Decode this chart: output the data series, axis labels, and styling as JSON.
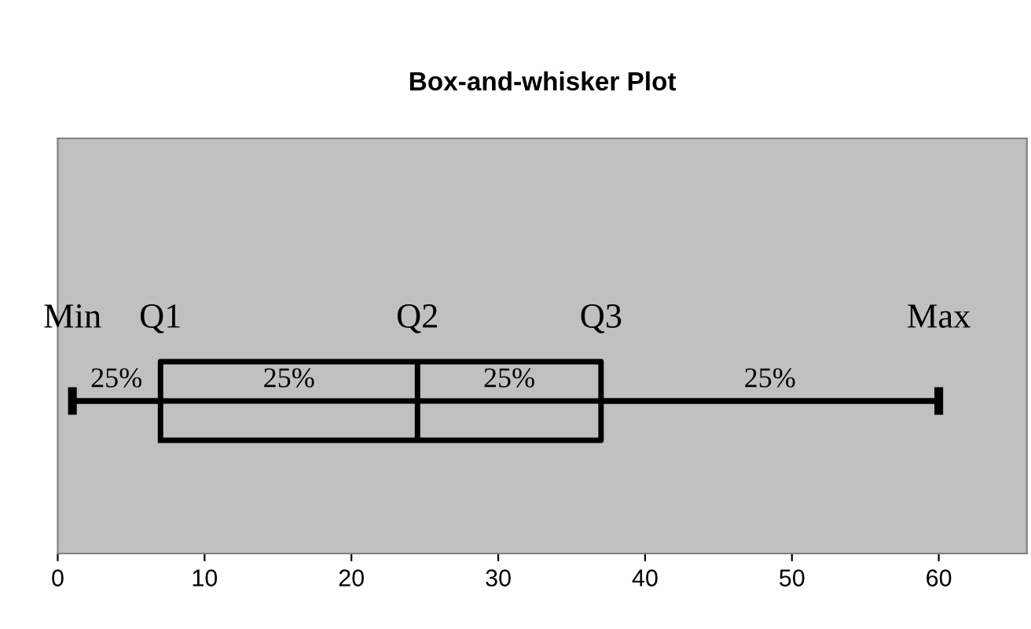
{
  "chart_data": {
    "type": "box",
    "title": "Box-and-whisker Plot",
    "orientation": "horizontal",
    "categories": [
      null
    ],
    "boxes": [
      {
        "low": 1,
        "q1": 7,
        "median": 24.5,
        "q3": 37,
        "high": 60
      }
    ],
    "color": "#000000",
    "xlim": [
      0,
      66
    ],
    "xticks": [
      0,
      10,
      20,
      30,
      40,
      50,
      60
    ],
    "tick_labels": "x",
    "grid": false,
    "annotations": [
      "Min",
      "Q1",
      "Q2",
      "Q3",
      "Max",
      "25%",
      "25%",
      "25%",
      "25%"
    ]
  }
}
